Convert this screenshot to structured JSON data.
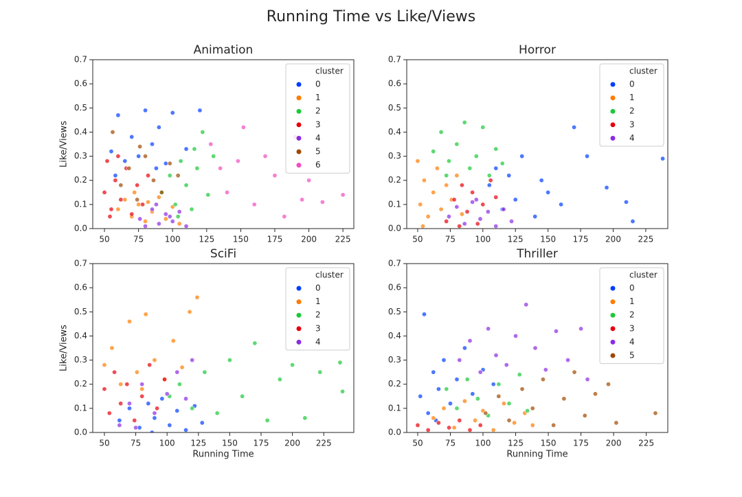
{
  "title": "Running Time vs Like/Views",
  "chart_data": [
    {
      "type": "scatter",
      "title": "Animation",
      "ylabel": "Like/Views",
      "xlim": [
        41.4,
        233
      ],
      "ylim": [
        0,
        0.7
      ],
      "xticks": [
        50,
        75,
        100,
        125,
        150,
        175,
        200,
        225
      ],
      "yticks": [
        {
          "value": 0,
          "label": "0.0"
        },
        0.1,
        0.2,
        0.3,
        0.4,
        0.5,
        0.6,
        0.7
      ],
      "legend_title": "cluster",
      "legend": "upper right",
      "series": [
        {
          "name": "0",
          "color": "#023eff",
          "x": [
            55,
            60,
            65,
            70,
            75,
            80,
            85,
            90,
            95,
            100,
            110,
            120,
            58,
            88
          ],
          "values": [
            0.32,
            0.47,
            0.28,
            0.38,
            0.3,
            0.49,
            0.35,
            0.42,
            0.27,
            0.48,
            0.33,
            0.49,
            0.22,
            0.25
          ]
        },
        {
          "name": "1",
          "color": "#ff7c00",
          "x": [
            60,
            65,
            70,
            75,
            80,
            85,
            90,
            95,
            100,
            105,
            72,
            82
          ],
          "values": [
            0.08,
            0.12,
            0.05,
            0.1,
            0.03,
            0.07,
            0.13,
            0.04,
            0.09,
            0.02,
            0.15,
            0.11
          ]
        },
        {
          "name": "2",
          "color": "#1ac938",
          "x": [
            92,
            98,
            102,
            106,
            110,
            114,
            118,
            122,
            126,
            130,
            104,
            116
          ],
          "values": [
            0.15,
            0.22,
            0.1,
            0.28,
            0.18,
            0.08,
            0.25,
            0.4,
            0.14,
            0.3,
            0.05,
            0.33
          ]
        },
        {
          "name": "3",
          "color": "#e8000b",
          "x": [
            50,
            52,
            55,
            58,
            62,
            66,
            70,
            74,
            78,
            82,
            54,
            60
          ],
          "values": [
            0.15,
            0.28,
            0.08,
            0.2,
            0.12,
            0.25,
            0.06,
            0.18,
            0.1,
            0.22,
            0.05,
            0.3
          ]
        },
        {
          "name": "4",
          "color": "#8b2be2",
          "x": [
            76,
            80,
            85,
            90,
            95,
            100,
            105,
            110,
            88,
            98
          ],
          "values": [
            0.04,
            0.01,
            0.08,
            0.02,
            0.06,
            0.03,
            0.07,
            0.01,
            0.1,
            0.05
          ]
        },
        {
          "name": "5",
          "color": "#9f4800",
          "x": [
            56,
            62,
            68,
            74,
            80,
            86,
            92,
            98,
            104,
            76
          ],
          "values": [
            0.4,
            0.18,
            0.25,
            0.12,
            0.3,
            0.2,
            0.15,
            0.27,
            0.22,
            0.34
          ]
        },
        {
          "name": "6",
          "color": "#f14cc1",
          "x": [
            128,
            135,
            140,
            148,
            152,
            160,
            168,
            175,
            182,
            190,
            200,
            210,
            225,
            195
          ],
          "values": [
            0.35,
            0.25,
            0.15,
            0.28,
            0.42,
            0.1,
            0.3,
            0.22,
            0.05,
            0.38,
            0.2,
            0.11,
            0.14,
            0.12
          ]
        }
      ]
    },
    {
      "type": "scatter",
      "title": "Horror",
      "xlim": [
        41.6,
        241.9
      ],
      "ylim": [
        0,
        0.7
      ],
      "xticks": [
        50,
        75,
        100,
        125,
        150,
        175,
        200,
        225
      ],
      "yticks": [
        {
          "value": 0,
          "label": "0.0"
        },
        0.1,
        0.2,
        0.3,
        0.4,
        0.5,
        0.6,
        0.7
      ],
      "legend_title": "cluster",
      "legend": "upper right",
      "series": [
        {
          "name": "0",
          "color": "#023eff",
          "x": [
            105,
            110,
            115,
            120,
            125,
            130,
            140,
            145,
            150,
            160,
            170,
            180,
            195,
            210,
            215,
            238
          ],
          "values": [
            0.18,
            0.25,
            0.08,
            0.22,
            0.12,
            0.3,
            0.05,
            0.2,
            0.15,
            0.1,
            0.42,
            0.3,
            0.17,
            0.11,
            0.03,
            0.29
          ]
        },
        {
          "name": "1",
          "color": "#ff7c00",
          "x": [
            50,
            52,
            55,
            58,
            62,
            65,
            68,
            72,
            76,
            80,
            84,
            54
          ],
          "values": [
            0.28,
            0.1,
            0.2,
            0.05,
            0.15,
            0.25,
            0.08,
            0.18,
            0.12,
            0.22,
            0.06,
            0.01
          ]
        },
        {
          "name": "2",
          "color": "#1ac938",
          "x": [
            62,
            68,
            74,
            80,
            86,
            90,
            95,
            100,
            105,
            110,
            115,
            72
          ],
          "values": [
            0.32,
            0.4,
            0.28,
            0.35,
            0.44,
            0.25,
            0.3,
            0.42,
            0.22,
            0.33,
            0.27,
            0.22
          ]
        },
        {
          "name": "3",
          "color": "#e8000b",
          "x": [
            72,
            78,
            84,
            88,
            92,
            96,
            100,
            106,
            82,
            110
          ],
          "values": [
            0.03,
            0.12,
            0.18,
            0.07,
            0.15,
            0.02,
            0.1,
            0.2,
            0.01,
            0.13
          ]
        },
        {
          "name": "4",
          "color": "#8b2be2",
          "x": [
            74,
            80,
            86,
            92,
            98,
            104,
            110,
            116,
            122,
            95
          ],
          "values": [
            0.05,
            0.09,
            0.02,
            0.11,
            0.04,
            0.07,
            0.01,
            0.08,
            0.03,
            0.12
          ]
        }
      ]
    },
    {
      "type": "scatter",
      "title": "SciFi",
      "xlabel": "Running Time",
      "ylabel": "Like/Views",
      "xlim": [
        40.7,
        249
      ],
      "ylim": [
        0,
        0.7
      ],
      "xticks": [
        50,
        75,
        100,
        125,
        150,
        175,
        200,
        225
      ],
      "yticks": [
        {
          "value": 0,
          "label": "0.0"
        },
        0.1,
        0.2,
        0.3,
        0.4,
        0.5,
        0.6,
        0.7
      ],
      "legend_title": "cluster",
      "legend": "upper right",
      "series": [
        {
          "name": "0",
          "color": "#023eff",
          "x": [
            62,
            70,
            78,
            85,
            90,
            96,
            102,
            108,
            115,
            122,
            128,
            88
          ],
          "values": [
            0.05,
            0.1,
            0.02,
            0.12,
            0.06,
            0.14,
            0.03,
            0.09,
            0.01,
            0.11,
            0.04,
            0.0
          ]
        },
        {
          "name": "1",
          "color": "#ff7c00",
          "x": [
            50,
            56,
            63,
            70,
            76,
            83,
            90,
            98,
            105,
            112,
            118,
            124,
            80
          ],
          "values": [
            0.28,
            0.35,
            0.2,
            0.46,
            0.25,
            0.49,
            0.3,
            0.22,
            0.38,
            0.27,
            0.5,
            0.56,
            0.18
          ]
        },
        {
          "name": "2",
          "color": "#1ac938",
          "x": [
            102,
            110,
            120,
            130,
            140,
            150,
            160,
            170,
            180,
            190,
            200,
            210,
            222,
            238,
            240
          ],
          "values": [
            0.15,
            0.2,
            0.1,
            0.25,
            0.08,
            0.3,
            0.15,
            0.37,
            0.05,
            0.22,
            0.28,
            0.06,
            0.25,
            0.29,
            0.17
          ]
        },
        {
          "name": "3",
          "color": "#e8000b",
          "x": [
            50,
            54,
            58,
            63,
            68,
            74,
            80,
            86,
            92,
            98
          ],
          "values": [
            0.18,
            0.08,
            0.25,
            0.12,
            0.2,
            0.05,
            0.15,
            0.28,
            0.1,
            0.22
          ]
        },
        {
          "name": "4",
          "color": "#8b2be2",
          "x": [
            62,
            70,
            80,
            90,
            100,
            108,
            115,
            120,
            75
          ],
          "values": [
            0.03,
            0.12,
            0.2,
            0.08,
            0.16,
            0.25,
            0.14,
            0.3,
            0.02
          ]
        }
      ]
    },
    {
      "type": "scatter",
      "title": "Thriller",
      "xlabel": "Running Time",
      "xlim": [
        41.6,
        241.5
      ],
      "ylim": [
        0,
        0.7
      ],
      "xticks": [
        50,
        75,
        100,
        125,
        150,
        175,
        200,
        225
      ],
      "yticks": [
        {
          "value": 0,
          "label": "0.0"
        },
        0.1,
        0.2,
        0.3,
        0.4,
        0.5,
        0.6,
        0.7
      ],
      "legend_title": "cluster",
      "legend": "upper right",
      "series": [
        {
          "name": "0",
          "color": "#023eff",
          "x": [
            52,
            55,
            58,
            62,
            66,
            70,
            75,
            80,
            86,
            92,
            100,
            108,
            64
          ],
          "values": [
            0.15,
            0.49,
            0.08,
            0.25,
            0.18,
            0.3,
            0.12,
            0.22,
            0.35,
            0.16,
            0.26,
            0.2,
            0.05
          ]
        },
        {
          "name": "1",
          "color": "#ff7c00",
          "x": [
            62,
            70,
            78,
            86,
            94,
            100,
            108,
            116,
            124,
            132,
            138
          ],
          "values": [
            0.06,
            0.1,
            0.02,
            0.13,
            0.05,
            0.09,
            0.01,
            0.12,
            0.04,
            0.08,
            0.03
          ]
        },
        {
          "name": "2",
          "color": "#1ac938",
          "x": [
            72,
            80,
            88,
            96,
            104,
            112,
            120,
            128,
            134
          ],
          "values": [
            0.18,
            0.1,
            0.22,
            0.14,
            0.07,
            0.2,
            0.12,
            0.24,
            0.09
          ]
        },
        {
          "name": "3",
          "color": "#e8000b",
          "x": [
            50,
            58,
            66,
            74,
            82,
            90,
            98
          ],
          "values": [
            0.03,
            0.01,
            0.04,
            0.02,
            0.05,
            0.01,
            0.03
          ]
        },
        {
          "name": "4",
          "color": "#8b2be2",
          "x": [
            82,
            90,
            98,
            104,
            110,
            118,
            125,
            133,
            140,
            148,
            156,
            165,
            175,
            180
          ],
          "values": [
            0.3,
            0.38,
            0.25,
            0.43,
            0.32,
            0.28,
            0.4,
            0.53,
            0.35,
            0.26,
            0.42,
            0.3,
            0.43,
            0.22
          ]
        },
        {
          "name": "5",
          "color": "#9f4800",
          "x": [
            102,
            112,
            120,
            130,
            138,
            146,
            154,
            162,
            170,
            178,
            186,
            196,
            202,
            232
          ],
          "values": [
            0.08,
            0.15,
            0.05,
            0.18,
            0.1,
            0.22,
            0.03,
            0.14,
            0.25,
            0.07,
            0.16,
            0.2,
            0.04,
            0.08
          ]
        }
      ]
    }
  ]
}
